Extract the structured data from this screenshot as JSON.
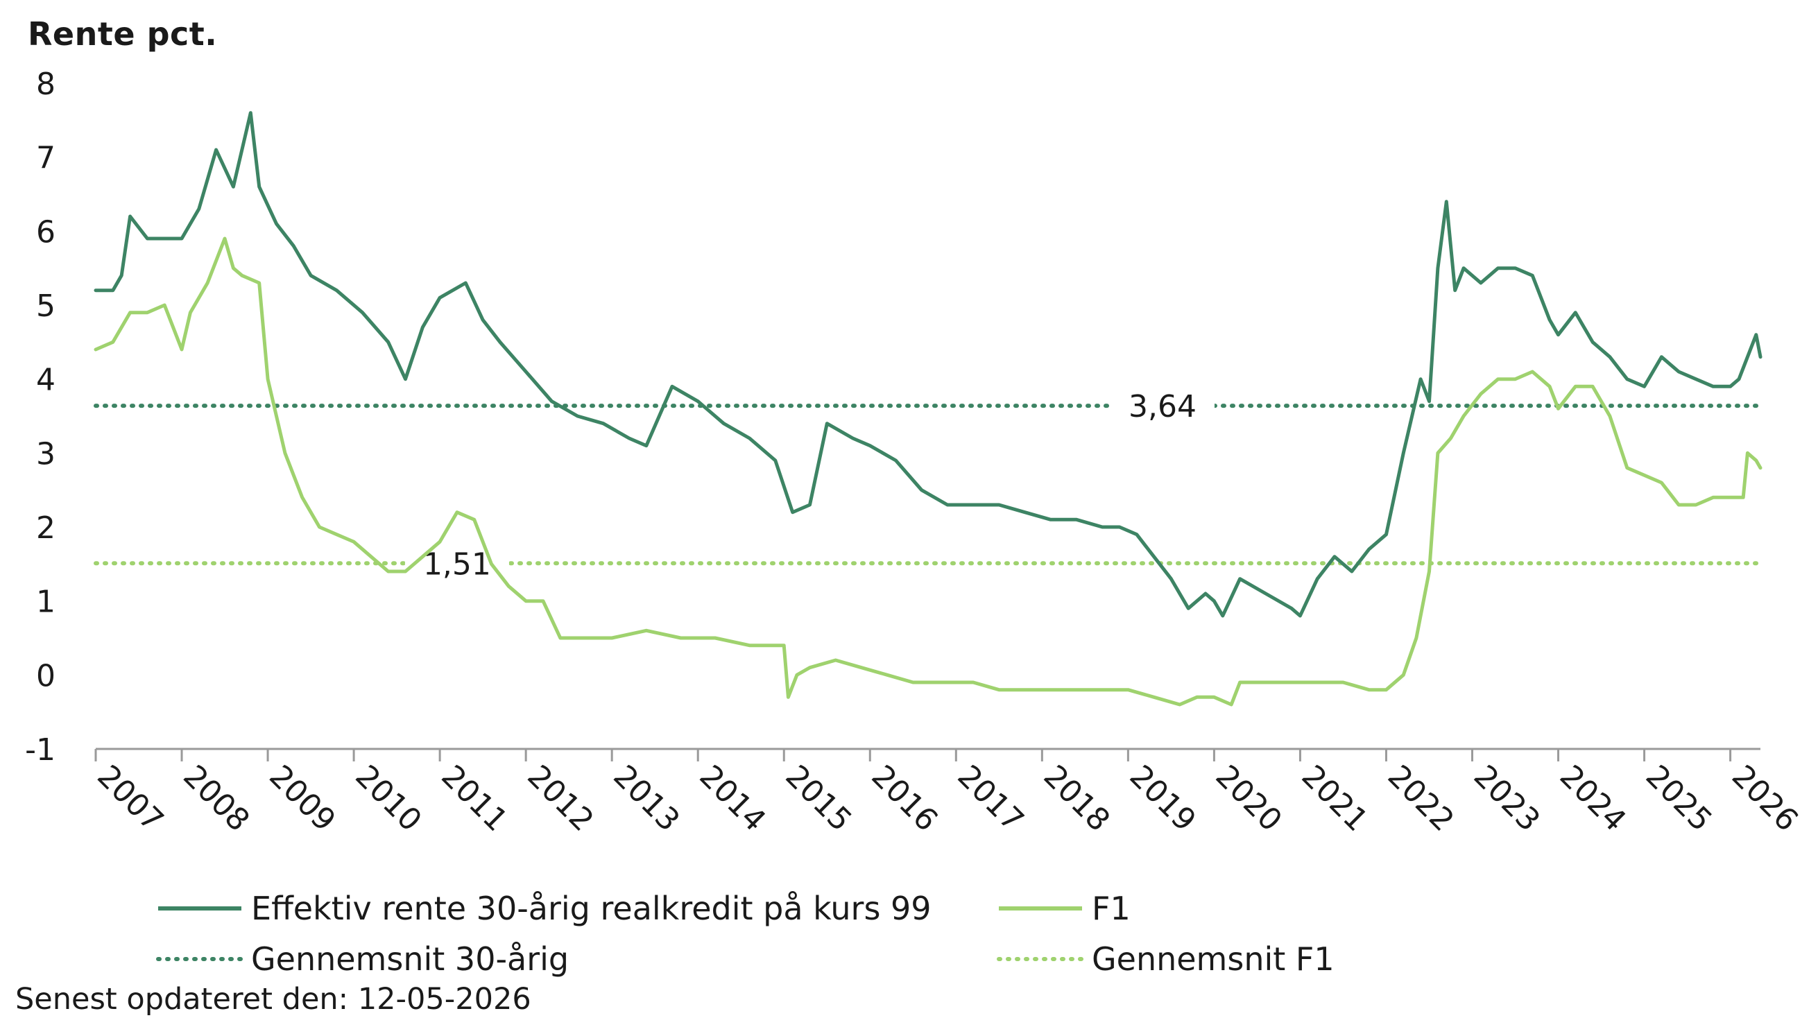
{
  "chart_data": {
    "type": "line",
    "ylabel": "Rente pct.",
    "ylim": [
      -1,
      8
    ],
    "yticks": [
      "-1",
      "0",
      "1",
      "2",
      "3",
      "4",
      "5",
      "6",
      "7",
      "8"
    ],
    "xlim": [
      2007,
      2026.35
    ],
    "xticks": [
      "2007",
      "2008",
      "2009",
      "2010",
      "2011",
      "2012",
      "2013",
      "2014",
      "2015",
      "2016",
      "2017",
      "2018",
      "2019",
      "2020",
      "2021",
      "2022",
      "2023",
      "2024",
      "2025",
      "2026"
    ],
    "grid": false,
    "legend_position": "bottom",
    "series": [
      {
        "name": "Effektiv rente 30-årig realkredit på kurs 99",
        "color": "#3d8464",
        "style": "solid",
        "x": [
          2007.0,
          2007.2,
          2007.3,
          2007.4,
          2007.6,
          2007.8,
          2008.0,
          2008.2,
          2008.4,
          2008.6,
          2008.8,
          2008.9,
          2009.1,
          2009.3,
          2009.5,
          2009.8,
          2010.1,
          2010.4,
          2010.6,
          2010.8,
          2011.0,
          2011.3,
          2011.5,
          2011.7,
          2012.0,
          2012.3,
          2012.6,
          2012.9,
          2013.2,
          2013.4,
          2013.7,
          2014.0,
          2014.3,
          2014.6,
          2014.9,
          2015.1,
          2015.3,
          2015.5,
          2015.8,
          2016.0,
          2016.3,
          2016.6,
          2016.9,
          2017.2,
          2017.5,
          2017.8,
          2018.1,
          2018.4,
          2018.7,
          2018.9,
          2019.1,
          2019.3,
          2019.5,
          2019.7,
          2019.9,
          2020.0,
          2020.1,
          2020.3,
          2020.6,
          2020.9,
          2021.0,
          2021.2,
          2021.4,
          2021.6,
          2021.8,
          2022.0,
          2022.2,
          2022.4,
          2022.5,
          2022.6,
          2022.7,
          2022.8,
          2022.9,
          2023.1,
          2023.3,
          2023.5,
          2023.7,
          2023.9,
          2024.0,
          2024.2,
          2024.4,
          2024.6,
          2024.8,
          2025.0,
          2025.2,
          2025.4,
          2025.6,
          2025.8,
          2026.0,
          2026.1,
          2026.2,
          2026.3,
          2026.35
        ],
        "values": [
          5.2,
          5.2,
          5.4,
          6.2,
          5.9,
          5.9,
          5.9,
          6.3,
          7.1,
          6.6,
          7.6,
          6.6,
          6.1,
          5.8,
          5.4,
          5.2,
          4.9,
          4.5,
          4.0,
          4.7,
          5.1,
          5.3,
          4.8,
          4.5,
          4.1,
          3.7,
          3.5,
          3.4,
          3.2,
          3.1,
          3.9,
          3.7,
          3.4,
          3.2,
          2.9,
          2.2,
          2.3,
          3.4,
          3.2,
          3.1,
          2.9,
          2.5,
          2.3,
          2.3,
          2.3,
          2.2,
          2.1,
          2.1,
          2.0,
          2.0,
          1.9,
          1.6,
          1.3,
          0.9,
          1.1,
          1.0,
          0.8,
          1.3,
          1.1,
          0.9,
          0.8,
          1.3,
          1.6,
          1.4,
          1.7,
          1.9,
          3.0,
          4.0,
          3.7,
          5.5,
          6.4,
          5.2,
          5.5,
          5.3,
          5.5,
          5.5,
          5.4,
          4.8,
          4.6,
          4.9,
          4.5,
          4.3,
          4.0,
          3.9,
          4.3,
          4.1,
          4.0,
          3.9,
          3.9,
          4.0,
          4.3,
          4.6,
          4.3
        ]
      },
      {
        "name": "F1",
        "color": "#9fd26e",
        "style": "solid",
        "x": [
          2007.0,
          2007.2,
          2007.4,
          2007.6,
          2007.8,
          2008.0,
          2008.1,
          2008.3,
          2008.5,
          2008.6,
          2008.7,
          2008.9,
          2009.0,
          2009.2,
          2009.4,
          2009.6,
          2009.8,
          2010.0,
          2010.2,
          2010.4,
          2010.6,
          2010.8,
          2011.0,
          2011.2,
          2011.4,
          2011.6,
          2011.8,
          2012.0,
          2012.2,
          2012.4,
          2012.6,
          2012.8,
          2013.0,
          2013.4,
          2013.8,
          2014.2,
          2014.6,
          2015.0,
          2015.05,
          2015.15,
          2015.3,
          2015.6,
          2015.9,
          2016.2,
          2016.5,
          2016.9,
          2017.2,
          2017.5,
          2017.9,
          2018.2,
          2018.6,
          2019.0,
          2019.3,
          2019.6,
          2019.8,
          2020.0,
          2020.2,
          2020.3,
          2020.6,
          2021.0,
          2021.2,
          2021.5,
          2021.8,
          2022.0,
          2022.2,
          2022.35,
          2022.5,
          2022.6,
          2022.75,
          2022.9,
          2023.1,
          2023.3,
          2023.5,
          2023.7,
          2023.9,
          2024.0,
          2024.2,
          2024.4,
          2024.6,
          2024.8,
          2025.0,
          2025.2,
          2025.4,
          2025.6,
          2025.8,
          2026.0,
          2026.15,
          2026.2,
          2026.3,
          2026.35
        ],
        "values": [
          4.4,
          4.5,
          4.9,
          4.9,
          5.0,
          4.4,
          4.9,
          5.3,
          5.9,
          5.5,
          5.4,
          5.3,
          4.0,
          3.0,
          2.4,
          2.0,
          1.9,
          1.8,
          1.6,
          1.4,
          1.4,
          1.6,
          1.8,
          2.2,
          2.1,
          1.5,
          1.2,
          1.0,
          1.0,
          0.5,
          0.5,
          0.5,
          0.5,
          0.6,
          0.5,
          0.5,
          0.4,
          0.4,
          -0.3,
          0.0,
          0.1,
          0.2,
          0.1,
          0.0,
          -0.1,
          -0.1,
          -0.1,
          -0.2,
          -0.2,
          -0.2,
          -0.2,
          -0.2,
          -0.3,
          -0.4,
          -0.3,
          -0.3,
          -0.4,
          -0.1,
          -0.1,
          -0.1,
          -0.1,
          -0.1,
          -0.2,
          -0.2,
          0.0,
          0.5,
          1.4,
          3.0,
          3.2,
          3.5,
          3.8,
          4.0,
          4.0,
          4.1,
          3.9,
          3.6,
          3.9,
          3.9,
          3.5,
          2.8,
          2.7,
          2.6,
          2.3,
          2.3,
          2.4,
          2.4,
          2.4,
          3.0,
          2.9,
          2.8
        ]
      },
      {
        "name": "Gennemsnit 30-årig",
        "color": "#3d8464",
        "style": "dotted",
        "constant": 3.64,
        "label": "3,64",
        "label_x": 2019.4
      },
      {
        "name": "Gennemsnit F1",
        "color": "#9fd26e",
        "style": "dotted",
        "constant": 1.51,
        "label": "1,51",
        "label_x": 2011.2
      }
    ]
  },
  "footer": {
    "updated_text": "Senest opdateret den: 12-05-2026"
  }
}
